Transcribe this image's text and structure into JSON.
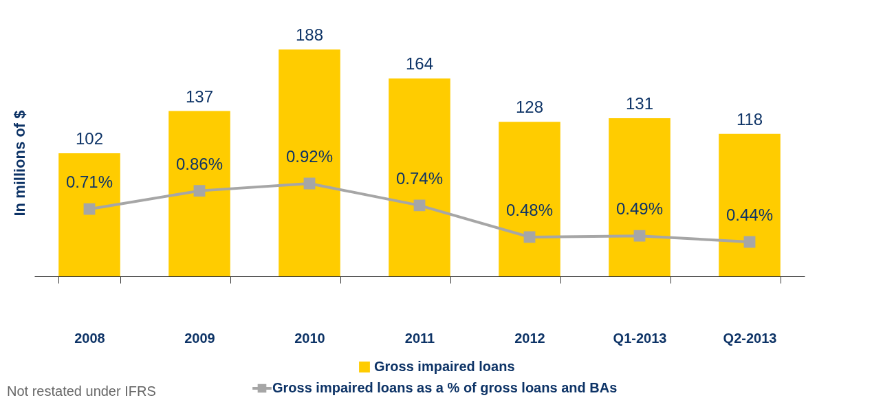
{
  "chart_data": {
    "type": "bar",
    "ylabel": "In millions of $",
    "categories": [
      "2008",
      "2009",
      "2010",
      "2011",
      "2012",
      "Q1-2013",
      "Q2-2013"
    ],
    "series": [
      {
        "name": "Gross impaired loans",
        "color": "#ffcc00",
        "values": [
          102,
          137,
          188,
          164,
          128,
          131,
          118
        ]
      },
      {
        "name": "Gross impaired loans as a % of gross loans and BAs",
        "type": "line",
        "axis": "y2",
        "color": "#a6a6a6",
        "marker": "square",
        "values": [
          0.71,
          0.86,
          0.92,
          0.74,
          0.48,
          0.49,
          0.44
        ],
        "value_labels": [
          "0.71%",
          "0.86%",
          "0.92%",
          "0.74%",
          "0.48%",
          "0.49%",
          "0.44%"
        ]
      }
    ],
    "tick_labels": "x",
    "data_labels": true,
    "grid": false,
    "legend": "bottom",
    "annotations": [
      "Not restated under IFRS"
    ]
  }
}
